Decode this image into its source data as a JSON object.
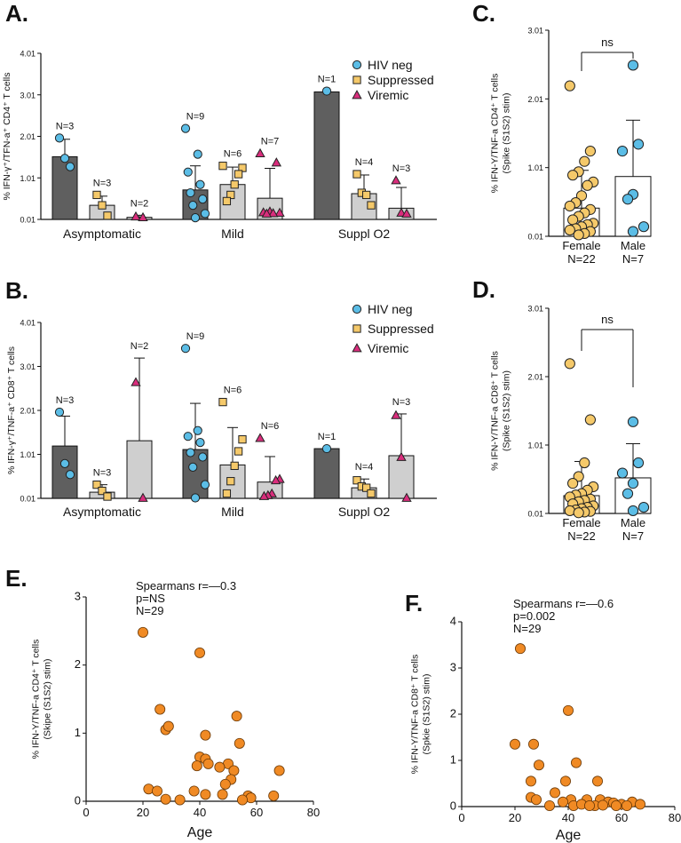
{
  "colors": {
    "hiv_neg": "#5bbde6",
    "suppressed": "#f5c96a",
    "viremic": "#d92d7c",
    "bar_dark": "#5f5f5f",
    "bar_light": "#cfcfcf",
    "scatter": "#f08a24"
  },
  "chart_data": [
    {
      "panel": "A.",
      "type": "bar",
      "ylabel": "% IFN-γ⁺/TFN-a⁺ CD4⁺ T cells",
      "yticks": [
        "0.01",
        "1.01",
        "2.01",
        "3.01",
        "4.01"
      ],
      "ylim": [
        0.01,
        4.01
      ],
      "categories": [
        "Asymptomatic",
        "Mild",
        "Suppl O2"
      ],
      "legend": [
        {
          "label": "HIV neg",
          "marker": "circle",
          "color": "#5bbde6"
        },
        {
          "label": "Suppressed",
          "marker": "square",
          "color": "#f5c96a"
        },
        {
          "label": "Viremic",
          "marker": "triangle",
          "color": "#d92d7c"
        }
      ],
      "series": [
        {
          "name": "HIV neg",
          "marker": "circle",
          "color": "#5bbde6",
          "bar": "dark",
          "values": [
            1.52,
            0.72,
            3.08
          ],
          "err": [
            0.42,
            0.58,
            0.0
          ],
          "n": [
            "N=3",
            "N=9",
            "N=1"
          ],
          "points": [
            [
              1.97,
              1.48,
              1.28
            ],
            [
              2.2,
              1.58,
              1.15,
              0.85,
              0.65,
              0.5,
              0.35,
              0.15,
              0.05
            ],
            [
              3.1
            ]
          ]
        },
        {
          "name": "Suppressed",
          "marker": "square",
          "color": "#f5c96a",
          "bar": "light",
          "values": [
            0.35,
            0.85,
            0.63
          ],
          "err": [
            0.22,
            0.42,
            0.45
          ],
          "n": [
            "N=3",
            "N=6",
            "N=4"
          ],
          "points": [
            [
              0.6,
              0.35,
              0.1
            ],
            [
              1.3,
              1.25,
              1.1,
              0.85,
              0.6,
              0.45
            ],
            [
              1.1,
              0.65,
              0.6,
              0.35
            ]
          ]
        },
        {
          "name": "Viremic",
          "marker": "triangle",
          "color": "#d92d7c",
          "bar": "light",
          "values": [
            0.06,
            0.52,
            0.28
          ],
          "err": [
            0.05,
            0.72,
            0.5
          ],
          "n": [
            "N=2",
            "N=7",
            "N=3"
          ],
          "points": [
            [
              0.08,
              0.06
            ],
            [
              1.6,
              1.38,
              0.2,
              0.18,
              0.17,
              0.16,
              0.15
            ],
            [
              0.95,
              0.17,
              0.15
            ]
          ]
        }
      ]
    },
    {
      "panel": "B.",
      "type": "bar",
      "ylabel": "% IFN-γ⁺/TNF-a⁺  CD8⁺ T cells",
      "yticks": [
        "0.01",
        "1.01",
        "2.01",
        "3.01",
        "4.01"
      ],
      "ylim": [
        0.01,
        4.01
      ],
      "categories": [
        "Asymptomatic",
        "Mild",
        "Suppl O2"
      ],
      "legend": [
        {
          "label": "HIV neg",
          "marker": "circle",
          "color": "#5bbde6"
        },
        {
          "label": "Suppressed",
          "marker": "square",
          "color": "#f5c96a"
        },
        {
          "label": "Viremic",
          "marker": "triangle",
          "color": "#d92d7c"
        }
      ],
      "series": [
        {
          "name": "HIV neg",
          "marker": "circle",
          "color": "#5bbde6",
          "bar": "dark",
          "values": [
            1.2,
            1.12,
            1.14
          ],
          "err": [
            0.68,
            1.05,
            0.0
          ],
          "n": [
            "N=3",
            "N=9",
            "N=1"
          ],
          "points": [
            [
              1.97,
              0.8,
              0.55
            ],
            [
              3.42,
              1.55,
              1.42,
              1.28,
              1.05,
              0.95,
              0.72,
              0.32,
              0.02
            ],
            [
              1.14
            ]
          ]
        },
        {
          "name": "Suppressed",
          "marker": "square",
          "color": "#f5c96a",
          "bar": "light",
          "values": [
            0.15,
            0.77,
            0.25
          ],
          "err": [
            0.17,
            0.85,
            0.2
          ],
          "n": [
            "N=3",
            "N=6",
            "N=4"
          ],
          "points": [
            [
              0.32,
              0.18,
              0.05
            ],
            [
              2.2,
              1.35,
              1.08,
              0.75,
              0.4,
              0.12
            ],
            [
              0.42,
              0.28,
              0.25,
              0.12
            ]
          ]
        },
        {
          "name": "Viremic",
          "marker": "triangle",
          "color": "#d92d7c",
          "bar": "light",
          "values": [
            1.32,
            0.38,
            0.98
          ],
          "err": [
            1.88,
            0.58,
            0.95
          ],
          "n": [
            "N=2",
            "N=6",
            "N=3"
          ],
          "points": [
            [
              2.65,
              0.02
            ],
            [
              1.38,
              0.45,
              0.42,
              0.12,
              0.08,
              0.06
            ],
            [
              1.9,
              0.95,
              0.02
            ]
          ]
        }
      ]
    },
    {
      "panel": "C.",
      "type": "bar",
      "ylabel_lines": [
        "% IFN-Y/TNF-a CD4⁺ T cells",
        "(Spike (S1S2) stim)"
      ],
      "yticks": [
        "0.01",
        "1.01",
        "2.01",
        "3.01"
      ],
      "ylim": [
        0.01,
        3.01
      ],
      "categories": [
        "Female",
        "Male"
      ],
      "n_labels": [
        "N=22",
        "N=7"
      ],
      "values": [
        0.42,
        0.88
      ],
      "err": [
        0.55,
        0.82
      ],
      "colors": [
        "#f5c96a",
        "#5bbde6"
      ],
      "significance": "ns",
      "points": [
        [
          2.2,
          1.25,
          1.1,
          0.95,
          0.9,
          0.8,
          0.75,
          0.6,
          0.5,
          0.45,
          0.4,
          0.35,
          0.3,
          0.25,
          0.2,
          0.18,
          0.15,
          0.12,
          0.1,
          0.08,
          0.05,
          0.03
        ],
        [
          2.5,
          1.35,
          1.25,
          0.62,
          0.55,
          0.15,
          0.08
        ]
      ]
    },
    {
      "panel": "D.",
      "type": "bar",
      "ylabel_lines": [
        "% IFN-Y/TNF-a CD8⁺ T cells",
        "(Spike (S1S2) stim)"
      ],
      "yticks": [
        "0.01",
        "1.01",
        "2.01",
        "3.01"
      ],
      "ylim": [
        0.01,
        3.01
      ],
      "categories": [
        "Female",
        "Male"
      ],
      "n_labels": [
        "N=22",
        "N=7"
      ],
      "values": [
        0.27,
        0.53
      ],
      "err": [
        0.5,
        0.5
      ],
      "colors": [
        "#f5c96a",
        "#5bbde6"
      ],
      "significance": "ns",
      "points": [
        [
          2.2,
          1.38,
          0.75,
          0.55,
          0.45,
          0.4,
          0.35,
          0.3,
          0.28,
          0.25,
          0.22,
          0.2,
          0.18,
          0.15,
          0.12,
          0.1,
          0.08,
          0.06,
          0.05,
          0.04,
          0.03,
          0.02
        ],
        [
          1.35,
          0.75,
          0.6,
          0.45,
          0.3,
          0.1,
          0.05
        ]
      ]
    },
    {
      "panel": "E.",
      "type": "scatter",
      "ylabel_lines": [
        "% IFN-Y/TNF-a CD4⁺ T cells",
        "(Skipe (S1S2) stim)"
      ],
      "xlabel": "Age",
      "xlim": [
        0,
        80
      ],
      "ylim": [
        0,
        3
      ],
      "xticks": [
        "0",
        "20",
        "40",
        "60",
        "80"
      ],
      "yticks": [
        "0",
        "1",
        "2",
        "3"
      ],
      "stats": [
        "Spearmans r=—0.3",
        "p=NS",
        "N=29"
      ],
      "points": [
        [
          20,
          2.48
        ],
        [
          40,
          2.18
        ],
        [
          26,
          1.35
        ],
        [
          28,
          1.05
        ],
        [
          29,
          1.1
        ],
        [
          53,
          1.25
        ],
        [
          42,
          0.97
        ],
        [
          54,
          0.85
        ],
        [
          40,
          0.65
        ],
        [
          42,
          0.62
        ],
        [
          39,
          0.52
        ],
        [
          43,
          0.55
        ],
        [
          50,
          0.55
        ],
        [
          47,
          0.5
        ],
        [
          52,
          0.45
        ],
        [
          68,
          0.45
        ],
        [
          51,
          0.32
        ],
        [
          49,
          0.25
        ],
        [
          22,
          0.18
        ],
        [
          25,
          0.15
        ],
        [
          38,
          0.15
        ],
        [
          42,
          0.1
        ],
        [
          48,
          0.1
        ],
        [
          57,
          0.08
        ],
        [
          58,
          0.05
        ],
        [
          66,
          0.08
        ],
        [
          28,
          0.03
        ],
        [
          33,
          0.02
        ],
        [
          55,
          0.02
        ]
      ]
    },
    {
      "panel": "F.",
      "type": "scatter",
      "ylabel_lines": [
        "% IFN-Y/TNF-a CD8⁺ T cells",
        "(Spkie (S1S2) stim)"
      ],
      "xlabel": "Age",
      "xlim": [
        0,
        80
      ],
      "ylim": [
        0,
        4
      ],
      "xticks": [
        "0",
        "20",
        "40",
        "60",
        "80"
      ],
      "yticks": [
        "0",
        "1",
        "2",
        "3",
        "4"
      ],
      "stats": [
        "Spearmans r=—0.6",
        "p=0.002",
        "N=29"
      ],
      "points": [
        [
          22,
          3.42
        ],
        [
          40,
          2.08
        ],
        [
          20,
          1.35
        ],
        [
          27,
          1.35
        ],
        [
          43,
          0.95
        ],
        [
          29,
          0.9
        ],
        [
          26,
          0.55
        ],
        [
          39,
          0.55
        ],
        [
          35,
          0.3
        ],
        [
          51,
          0.55
        ],
        [
          26,
          0.2
        ],
        [
          28,
          0.15
        ],
        [
          41,
          0.15
        ],
        [
          47,
          0.15
        ],
        [
          52,
          0.15
        ],
        [
          38,
          0.1
        ],
        [
          55,
          0.1
        ],
        [
          57,
          0.08
        ],
        [
          60,
          0.05
        ],
        [
          64,
          0.1
        ],
        [
          67,
          0.05
        ],
        [
          33,
          0.02
        ],
        [
          42,
          0.02
        ],
        [
          45,
          0.05
        ],
        [
          50,
          0.02
        ],
        [
          53,
          0.03
        ],
        [
          58,
          0.02
        ],
        [
          62,
          0.02
        ],
        [
          48,
          0.02
        ]
      ]
    }
  ]
}
